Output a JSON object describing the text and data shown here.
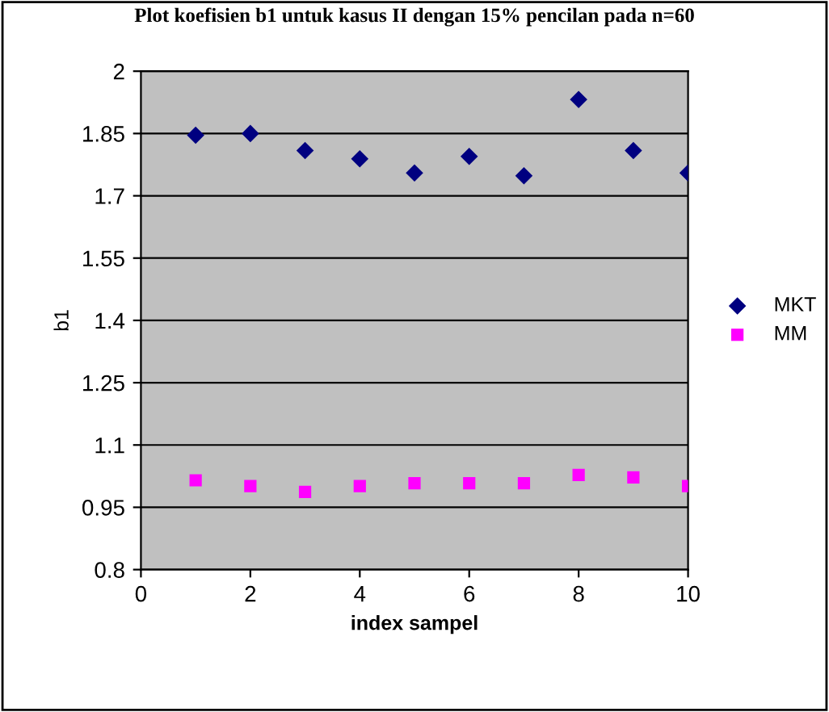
{
  "chart_data": {
    "type": "scatter",
    "title": "Plot koefisien b1 untuk kasus II dengan 15% pencilan pada n=60",
    "xlabel": "index sampel",
    "ylabel": "b1",
    "x": [
      1,
      2,
      3,
      4,
      5,
      6,
      7,
      8,
      9,
      10
    ],
    "series": [
      {
        "name": "MKT",
        "color": "#000080",
        "marker": "diamond",
        "values": [
          1.846,
          1.85,
          1.809,
          1.789,
          1.755,
          1.795,
          1.748,
          1.932,
          1.809,
          1.755
        ]
      },
      {
        "name": "MM",
        "color": "#ff00ff",
        "marker": "square",
        "values": [
          1.015,
          1.001,
          0.987,
          1.001,
          1.008,
          1.008,
          1.008,
          1.028,
          1.022,
          1.001
        ]
      }
    ],
    "xlim": [
      0,
      10
    ],
    "xticks": [
      0,
      2,
      4,
      6,
      8,
      10
    ],
    "ylim": [
      0.8,
      2
    ],
    "yticks": [
      0.8,
      0.95,
      1.1,
      1.25,
      1.4,
      1.55,
      1.7,
      1.85,
      2
    ],
    "grid": "y",
    "legend": "right"
  }
}
